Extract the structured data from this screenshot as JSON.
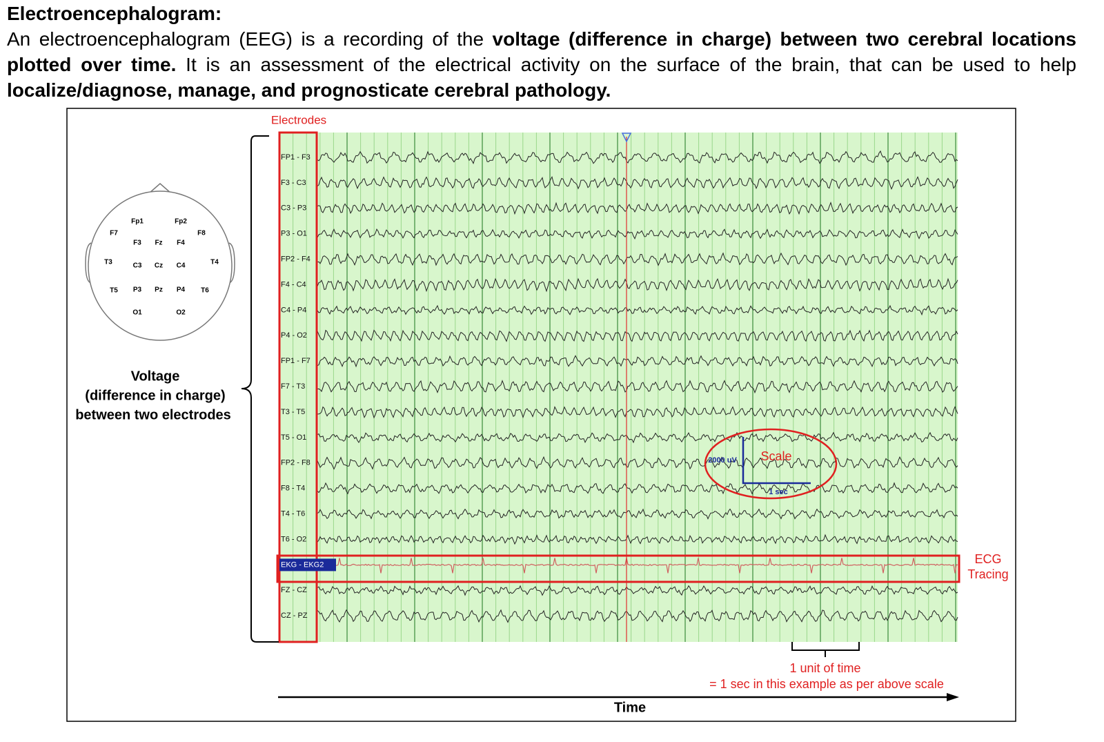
{
  "header": {
    "title": "Electroencephalogram:",
    "paragraph": [
      {
        "text": "An electroencephalogram (EEG) is a recording of the ",
        "bold": false
      },
      {
        "text": "voltage (difference in charge) between two cerebral locations plotted over time.",
        "bold": true
      },
      {
        "text": "  It is an assessment of the electrical activity on the surface of the brain, that can be used to help ",
        "bold": false
      },
      {
        "text": "localize/diagnose, manage, and prognosticate cerebral pathology.",
        "bold": true
      }
    ]
  },
  "figure": {
    "electrodes_label": "Electrodes",
    "channels": [
      "FP1 - F3",
      "F3 - C3",
      "C3 - P3",
      "P3 - O1",
      "FP2 - F4",
      "F4 - C4",
      "C4 - P4",
      "P4 - O2",
      "FP1 - F7",
      "F7 - T3",
      "T3 - T5",
      "T5 - O1",
      "FP2 - F8",
      "F8 - T4",
      "T4 - T6",
      "T6 - O2",
      "EKG - EKG2",
      "FZ - CZ",
      "CZ - PZ"
    ],
    "head_electrodes": [
      "Fp1",
      "Fp2",
      "F7",
      "F8",
      "F3",
      "Fz",
      "F4",
      "T3",
      "C3",
      "Cz",
      "C4",
      "T4",
      "T5",
      "P3",
      "Pz",
      "P4",
      "T6",
      "O1",
      "O2"
    ],
    "voltage_caption": [
      "Voltage",
      "(difference in charge)",
      "between two electrodes"
    ],
    "scale": {
      "label": "Scale",
      "amplitude": "2000 uV",
      "time": "1 sec"
    },
    "ecg_label": [
      "ECG",
      "Tracing"
    ],
    "unit_caption": [
      "1 unit of time",
      "= 1 sec in this example as per above scale"
    ],
    "time_label": "Time"
  }
}
